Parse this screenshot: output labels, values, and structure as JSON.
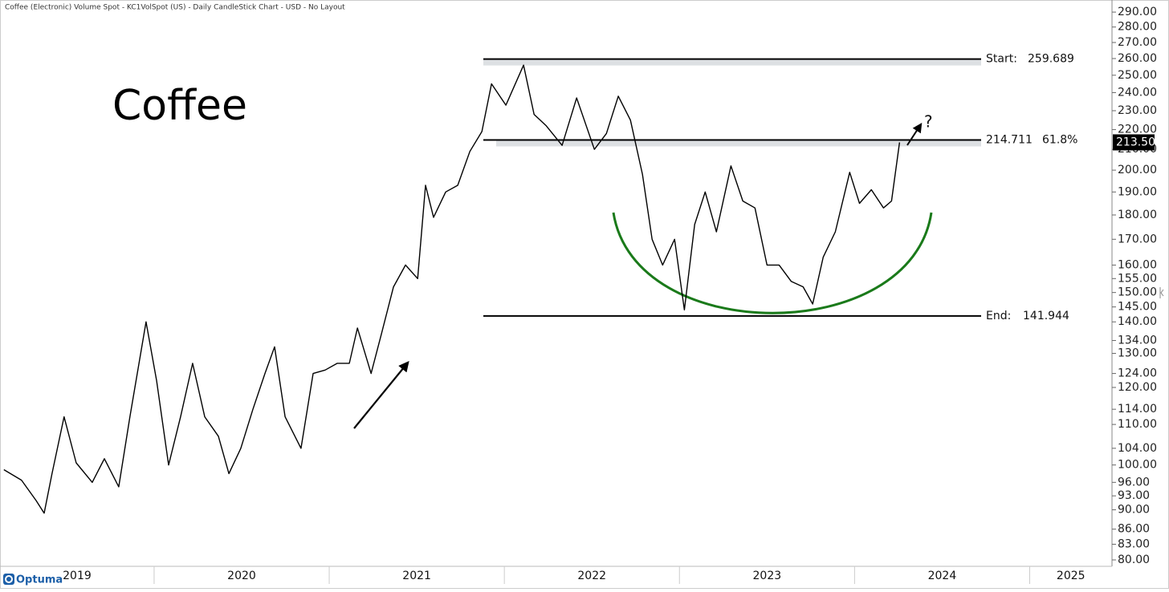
{
  "chart_data": {
    "type": "line",
    "title": "Coffee (Electronic) Volume Spot - KC1VolSpot (US) - Daily CandleStick Chart - USD - No Layout",
    "label": "Coffee",
    "annotation": "?",
    "brand": "Optuma",
    "log_scale": true,
    "color": "#000000",
    "x": [
      2019.142,
      2019.243,
      2019.326,
      2019.372,
      2019.417,
      2019.486,
      2019.555,
      2019.647,
      2019.716,
      2019.798,
      2019.862,
      2019.954,
      2020.014,
      2020.083,
      2020.151,
      2020.22,
      2020.289,
      2020.367,
      2020.427,
      2020.495,
      2020.564,
      2020.633,
      2020.688,
      2020.748,
      2020.839,
      2020.908,
      2020.977,
      2021.046,
      2021.115,
      2021.161,
      2021.239,
      2021.298,
      2021.367,
      2021.436,
      2021.505,
      2021.55,
      2021.596,
      2021.665,
      2021.734,
      2021.803,
      2021.872,
      2021.927,
      2022.009,
      2022.11,
      2022.17,
      2022.239,
      2022.33,
      2022.413,
      2022.514,
      2022.583,
      2022.651,
      2022.72,
      2022.789,
      2022.844,
      2022.904,
      2022.972,
      2023.028,
      2023.087,
      2023.147,
      2023.211,
      2023.294,
      2023.362,
      2023.431,
      2023.5,
      2023.569,
      2023.638,
      2023.706,
      2023.761,
      2023.821,
      2023.89,
      2023.972,
      2024.028,
      2024.096,
      2024.165,
      2024.211,
      2024.257
    ],
    "values": [
      98.9,
      96.5,
      92,
      89.3,
      98,
      112,
      100.5,
      96,
      101.5,
      95,
      112,
      140,
      122,
      100,
      112,
      127,
      112,
      107,
      98,
      104,
      114,
      124,
      132,
      112,
      104,
      124,
      125,
      127,
      127,
      138,
      124,
      136,
      152,
      160,
      155,
      193,
      179,
      190,
      193,
      209,
      219,
      245,
      233,
      256,
      228,
      222,
      212,
      237,
      210,
      218,
      238,
      225,
      198,
      170,
      160,
      170,
      144,
      176,
      190,
      173,
      202,
      186,
      183,
      160,
      160,
      154,
      152,
      146,
      163,
      173,
      199,
      185,
      191,
      183,
      186,
      213.5
    ],
    "last_price": {
      "value": 213.5,
      "label": "213.50"
    },
    "levels": [
      {
        "name": "Start:",
        "value": 259.689
      },
      {
        "value": 214.711,
        "ratio": "61.8%"
      },
      {
        "name": "End:",
        "value": 141.944
      }
    ],
    "xlim": [
      2019.12,
      2025.47
    ],
    "xticks": [
      2019,
      2020,
      2021,
      2022,
      2023,
      2024,
      2025
    ],
    "ylim": [
      78.8,
      293.9
    ],
    "yticks": [
      {
        "value": 80,
        "label": "80.00"
      },
      {
        "value": 83,
        "label": "83.00"
      },
      {
        "value": 86,
        "label": "86.00"
      },
      {
        "value": 90,
        "label": "90.00"
      },
      {
        "value": 93,
        "label": "93.00"
      },
      {
        "value": 96,
        "label": "96.00"
      },
      {
        "value": 100,
        "label": "100.00"
      },
      {
        "value": 104,
        "label": "104.00"
      },
      {
        "value": 110,
        "label": "110.00"
      },
      {
        "value": 114,
        "label": "114.00"
      },
      {
        "value": 120,
        "label": "120.00"
      },
      {
        "value": 124,
        "label": "124.00"
      },
      {
        "value": 130,
        "label": "130.00"
      },
      {
        "value": 134,
        "label": "134.00"
      },
      {
        "value": 140,
        "label": "140.00"
      },
      {
        "value": 145,
        "label": "145.00"
      },
      {
        "value": 150,
        "label": "150.00"
      },
      {
        "value": 155,
        "label": "155.00"
      },
      {
        "value": 160,
        "label": "160.00"
      },
      {
        "value": 170,
        "label": "170.00"
      },
      {
        "value": 180,
        "label": "180.00"
      },
      {
        "value": 190,
        "label": "190.00"
      },
      {
        "value": 200,
        "label": "200.00"
      },
      {
        "value": 210,
        "label": "210.00"
      },
      {
        "value": 220,
        "label": "220.00"
      },
      {
        "value": 230,
        "label": "230.00"
      },
      {
        "value": 240,
        "label": "240.00"
      },
      {
        "value": 250,
        "label": "250.00"
      },
      {
        "value": 260,
        "label": "260.00"
      },
      {
        "value": 270,
        "label": "270.00"
      },
      {
        "value": 280,
        "label": "280.00"
      },
      {
        "value": 290,
        "label": "290.00"
      }
    ]
  }
}
